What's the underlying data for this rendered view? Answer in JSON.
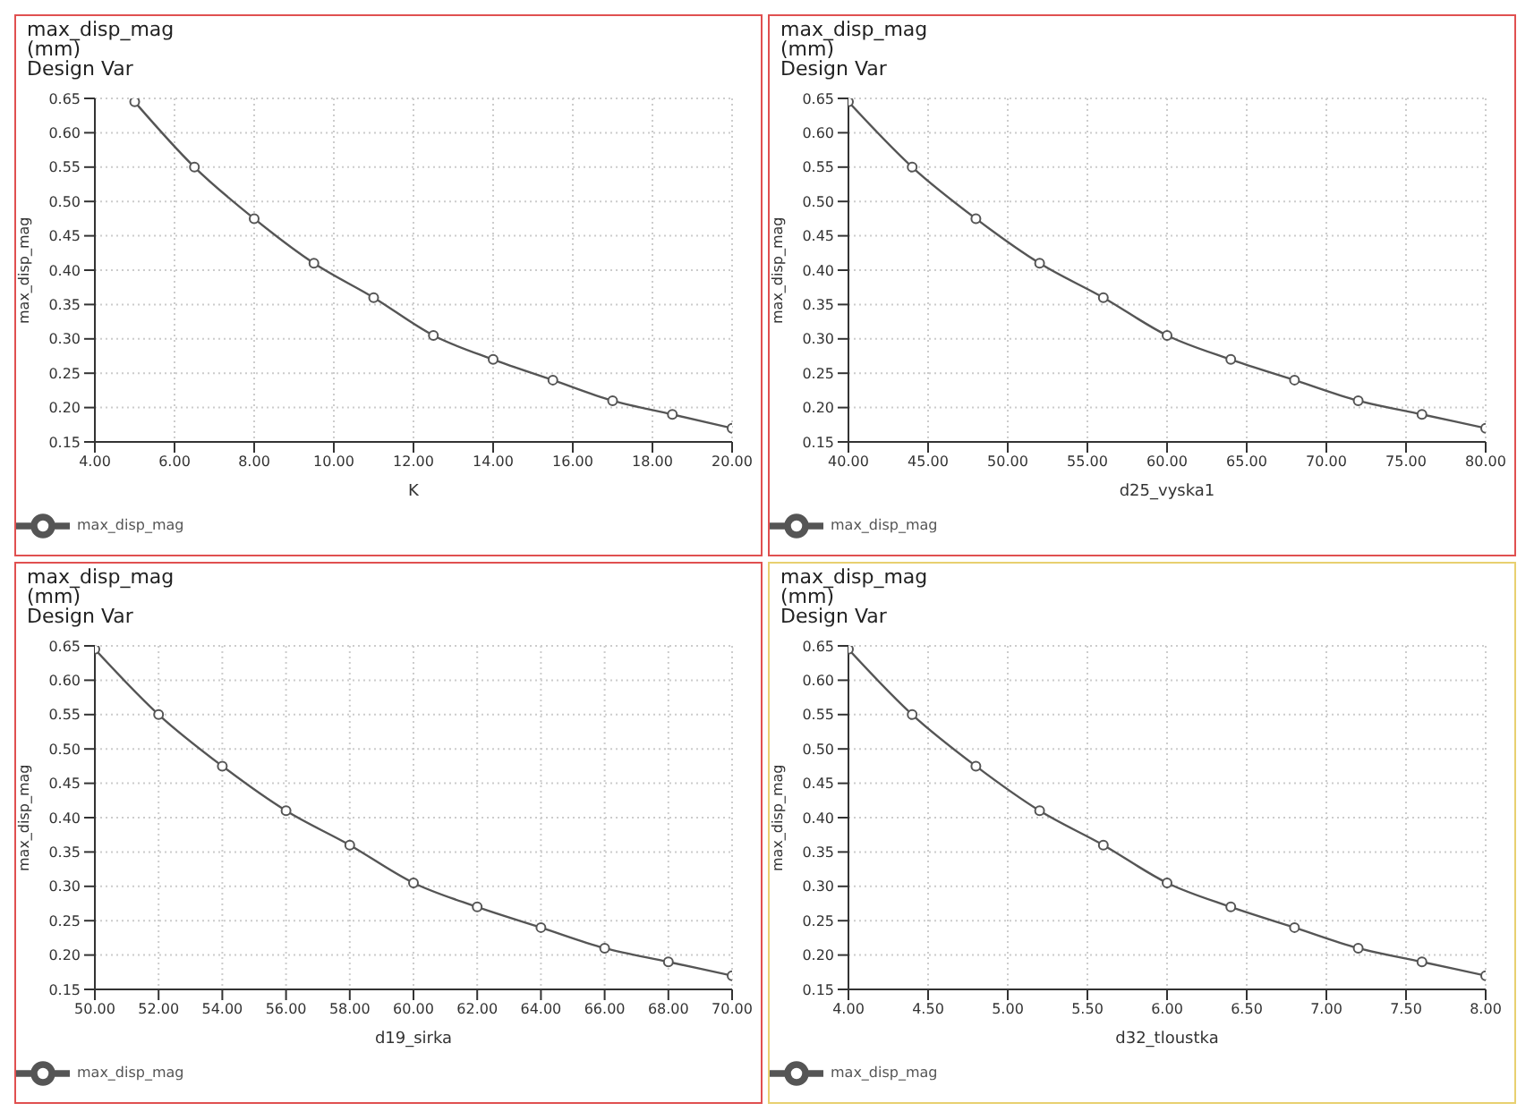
{
  "chart_data": [
    {
      "type": "line",
      "title": "max_disp_mag",
      "subtitle": "(mm)",
      "annotations": [
        "Design Var"
      ],
      "xlabel": "K",
      "ylabel": "max_disp_mag",
      "x": [
        5,
        6.5,
        8,
        9.5,
        11,
        12.5,
        14,
        15.5,
        17,
        18.5,
        20
      ],
      "series": [
        {
          "name": "max_disp_mag",
          "color": "#555555",
          "values": [
            0.645,
            0.55,
            0.475,
            0.41,
            0.36,
            0.305,
            0.27,
            0.24,
            0.21,
            0.19,
            0.17
          ]
        }
      ],
      "xlim": [
        4,
        20
      ],
      "xticks": [
        {
          "value": 4,
          "label": "4.00"
        },
        {
          "value": 6,
          "label": "6.00"
        },
        {
          "value": 8,
          "label": "8.00"
        },
        {
          "value": 10,
          "label": "10.00"
        },
        {
          "value": 12,
          "label": "12.00"
        },
        {
          "value": 14,
          "label": "14.00"
        },
        {
          "value": 16,
          "label": "16.00"
        },
        {
          "value": 18,
          "label": "18.00"
        },
        {
          "value": 20,
          "label": "20.00"
        }
      ],
      "ylim": [
        0.15,
        0.65
      ],
      "yticks": [
        0.15,
        {
          "value": 0.2,
          "label": "0.20"
        },
        0.25,
        {
          "value": 0.3,
          "label": "0.30"
        },
        0.35,
        {
          "value": 0.4,
          "label": "0.40"
        },
        0.45,
        {
          "value": 0.5,
          "label": "0.50"
        },
        0.55,
        {
          "value": 0.6,
          "label": "0.60"
        },
        0.65
      ],
      "grid": true,
      "legend": "bottom left",
      "marker": "circle",
      "line_style": "solid"
    },
    {
      "type": "line",
      "title": "max_disp_mag",
      "subtitle": "(mm)",
      "annotations": [
        "Design Var"
      ],
      "xlabel": "d25_vyska1",
      "ylabel": "max_disp_mag",
      "x": [
        40,
        44,
        48,
        52,
        56,
        60,
        64,
        68,
        72,
        76,
        80
      ],
      "series": [
        {
          "name": "max_disp_mag",
          "color": "#555555",
          "values": [
            0.645,
            0.55,
            0.475,
            0.41,
            0.36,
            0.305,
            0.27,
            0.24,
            0.21,
            0.19,
            0.17
          ]
        }
      ],
      "xlim": [
        40,
        80
      ],
      "xticks": [
        {
          "value": 40,
          "label": "40.00"
        },
        {
          "value": 45,
          "label": "45.00"
        },
        {
          "value": 50,
          "label": "50.00"
        },
        {
          "value": 55,
          "label": "55.00"
        },
        {
          "value": 60,
          "label": "60.00"
        },
        {
          "value": 65,
          "label": "65.00"
        },
        {
          "value": 70,
          "label": "70.00"
        },
        {
          "value": 75,
          "label": "75.00"
        },
        {
          "value": 80,
          "label": "80.00"
        }
      ],
      "ylim": [
        0.15,
        0.65
      ],
      "yticks": [
        0.15,
        {
          "value": 0.2,
          "label": "0.20"
        },
        0.25,
        {
          "value": 0.3,
          "label": "0.30"
        },
        0.35,
        {
          "value": 0.4,
          "label": "0.40"
        },
        0.45,
        {
          "value": 0.5,
          "label": "0.50"
        },
        0.55,
        {
          "value": 0.6,
          "label": "0.60"
        },
        0.65
      ],
      "grid": true,
      "legend": "bottom left",
      "marker": "circle",
      "line_style": "solid"
    },
    {
      "type": "line",
      "title": "max_disp_mag",
      "subtitle": "(mm)",
      "annotations": [
        "Design Var"
      ],
      "xlabel": "d19_sirka",
      "ylabel": "max_disp_mag",
      "x": [
        50,
        52,
        54,
        56,
        58,
        60,
        62,
        64,
        66,
        68,
        70
      ],
      "series": [
        {
          "name": "max_disp_mag",
          "color": "#555555",
          "values": [
            0.645,
            0.55,
            0.475,
            0.41,
            0.36,
            0.305,
            0.27,
            0.24,
            0.21,
            0.19,
            0.17
          ]
        }
      ],
      "xlim": [
        50,
        70
      ],
      "xticks": [
        {
          "value": 50,
          "label": "50.00"
        },
        {
          "value": 52,
          "label": "52.00"
        },
        {
          "value": 54,
          "label": "54.00"
        },
        {
          "value": 56,
          "label": "56.00"
        },
        {
          "value": 58,
          "label": "58.00"
        },
        {
          "value": 60,
          "label": "60.00"
        },
        {
          "value": 62,
          "label": "62.00"
        },
        {
          "value": 64,
          "label": "64.00"
        },
        {
          "value": 66,
          "label": "66.00"
        },
        {
          "value": 68,
          "label": "68.00"
        },
        {
          "value": 70,
          "label": "70.00"
        }
      ],
      "ylim": [
        0.15,
        0.65
      ],
      "yticks": [
        0.15,
        {
          "value": 0.2,
          "label": "0.20"
        },
        0.25,
        {
          "value": 0.3,
          "label": "0.30"
        },
        0.35,
        {
          "value": 0.4,
          "label": "0.40"
        },
        0.45,
        {
          "value": 0.5,
          "label": "0.50"
        },
        0.55,
        {
          "value": 0.6,
          "label": "0.60"
        },
        0.65
      ],
      "grid": true,
      "legend": "bottom left",
      "marker": "circle",
      "line_style": "solid"
    },
    {
      "type": "line",
      "title": "max_disp_mag",
      "subtitle": "(mm)",
      "annotations": [
        "Design Var"
      ],
      "xlabel": "d32_tloustka",
      "ylabel": "max_disp_mag",
      "x": [
        4,
        4.4,
        4.8,
        5.2,
        5.6,
        6,
        6.4,
        6.8,
        7.2,
        7.6,
        8
      ],
      "series": [
        {
          "name": "max_disp_mag",
          "color": "#555555",
          "values": [
            0.645,
            0.55,
            0.475,
            0.41,
            0.36,
            0.305,
            0.27,
            0.24,
            0.21,
            0.19,
            0.17
          ]
        }
      ],
      "xlim": [
        4,
        8
      ],
      "xticks": [
        {
          "value": 4,
          "label": "4.00"
        },
        {
          "value": 4.5,
          "label": "4.50"
        },
        {
          "value": 5,
          "label": "5.00"
        },
        {
          "value": 5.5,
          "label": "5.50"
        },
        {
          "value": 6,
          "label": "6.00"
        },
        {
          "value": 6.5,
          "label": "6.50"
        },
        {
          "value": 7,
          "label": "7.00"
        },
        {
          "value": 7.5,
          "label": "7.50"
        },
        {
          "value": 8,
          "label": "8.00"
        }
      ],
      "ylim": [
        0.15,
        0.65
      ],
      "yticks": [
        0.15,
        {
          "value": 0.2,
          "label": "0.20"
        },
        0.25,
        {
          "value": 0.3,
          "label": "0.30"
        },
        0.35,
        {
          "value": 0.4,
          "label": "0.40"
        },
        0.45,
        {
          "value": 0.5,
          "label": "0.50"
        },
        0.55,
        {
          "value": 0.6,
          "label": "0.60"
        },
        0.65
      ],
      "grid": true,
      "legend": "bottom left",
      "marker": "circle",
      "line_style": "solid"
    }
  ]
}
